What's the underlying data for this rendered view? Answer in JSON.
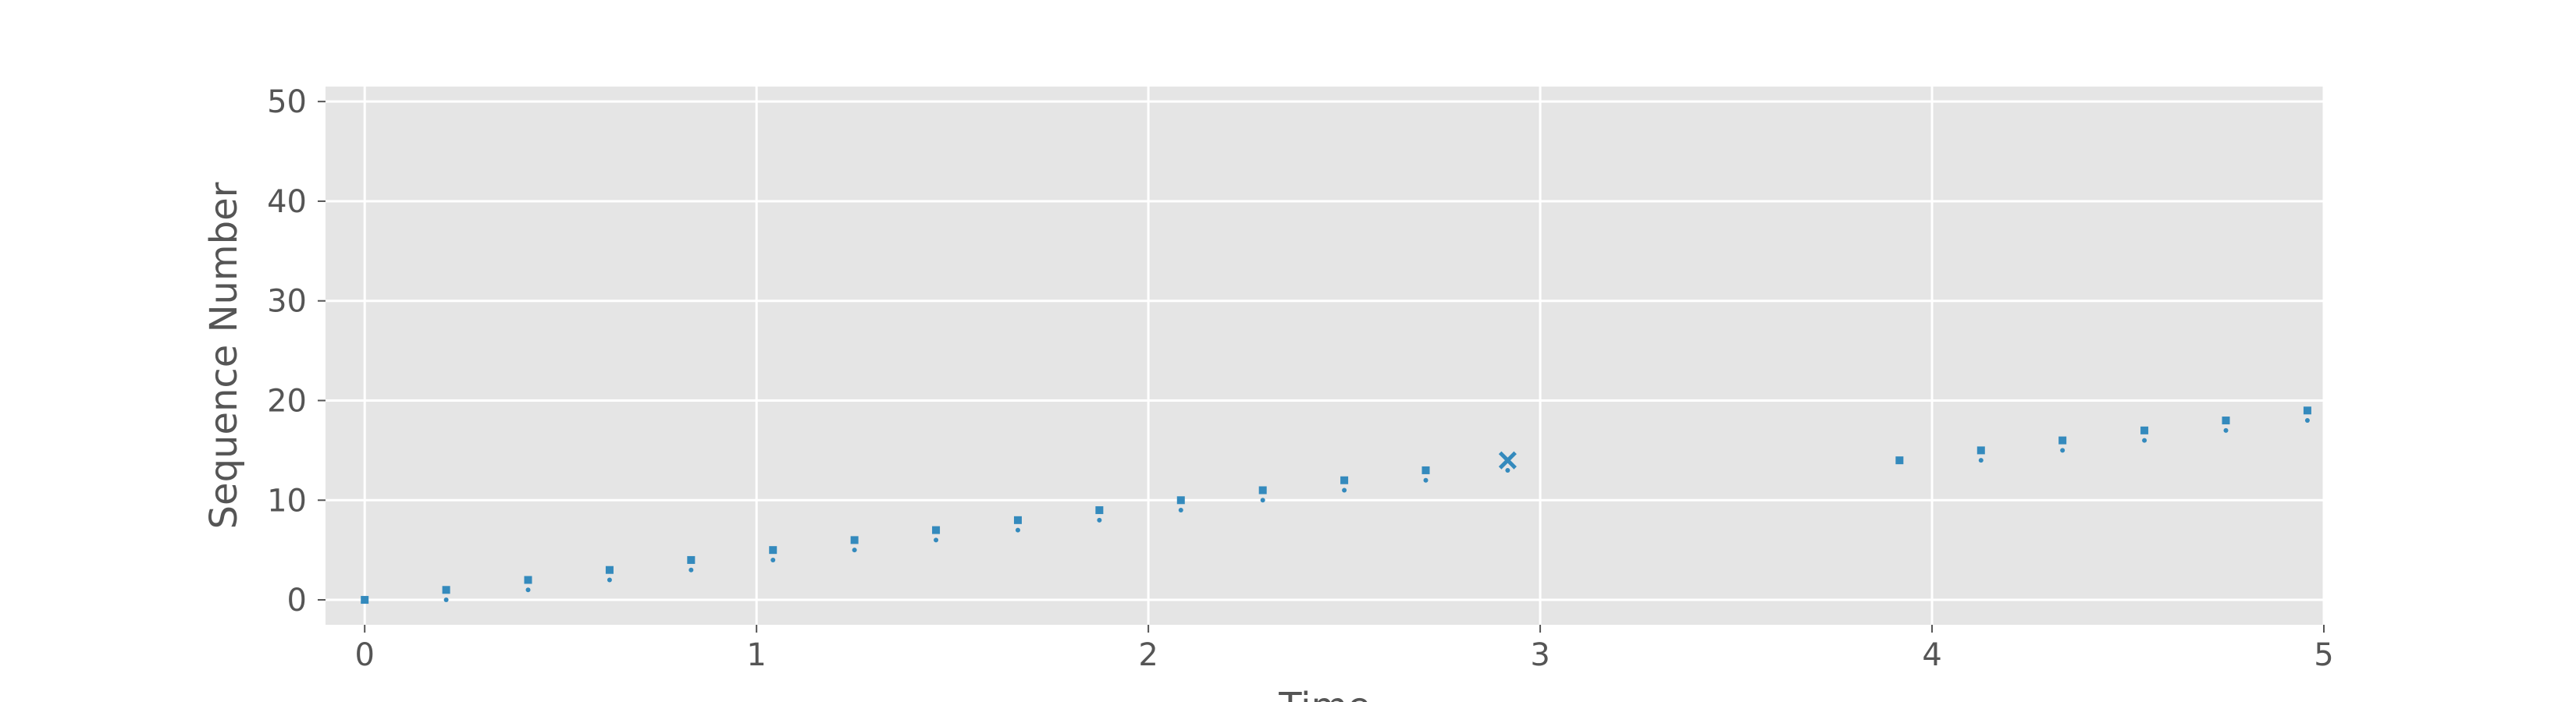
{
  "chart_data": {
    "type": "scatter",
    "title": "",
    "xlabel": "Time",
    "ylabel": "Sequence Number",
    "xlim": [
      -0.1,
      5.0
    ],
    "ylim": [
      -2.5,
      51.5
    ],
    "xticks": [
      0,
      1,
      2,
      3,
      4,
      5
    ],
    "yticks": [
      0,
      10,
      20,
      30,
      40,
      50
    ],
    "grid": true,
    "colors": {
      "plot_bg": "#e5e5e5",
      "grid": "#ffffff",
      "marker": "#348abd",
      "text": "#555555"
    },
    "series": [
      {
        "marker": "square",
        "x": [
          0.0,
          0.208,
          0.417,
          0.625,
          0.833,
          1.042,
          1.25,
          1.458,
          1.667,
          1.875,
          2.083,
          2.292,
          2.5,
          2.708,
          3.917,
          4.125,
          4.333,
          4.542,
          4.75,
          4.958
        ],
        "y": [
          0,
          1,
          2,
          3,
          4,
          5,
          6,
          7,
          8,
          9,
          10,
          11,
          12,
          13,
          14,
          15,
          16,
          17,
          18,
          19
        ]
      },
      {
        "marker": "dot",
        "x": [
          0.208,
          0.417,
          0.625,
          0.833,
          1.042,
          1.25,
          1.458,
          1.667,
          1.875,
          2.083,
          2.292,
          2.5,
          2.708,
          2.917,
          4.125,
          4.333,
          4.542,
          4.75,
          4.958
        ],
        "y": [
          0,
          1,
          2,
          3,
          4,
          5,
          6,
          7,
          8,
          9,
          10,
          11,
          12,
          13,
          14,
          15,
          16,
          17,
          18
        ]
      },
      {
        "marker": "x",
        "x": [
          2.917
        ],
        "y": [
          14
        ]
      }
    ]
  }
}
